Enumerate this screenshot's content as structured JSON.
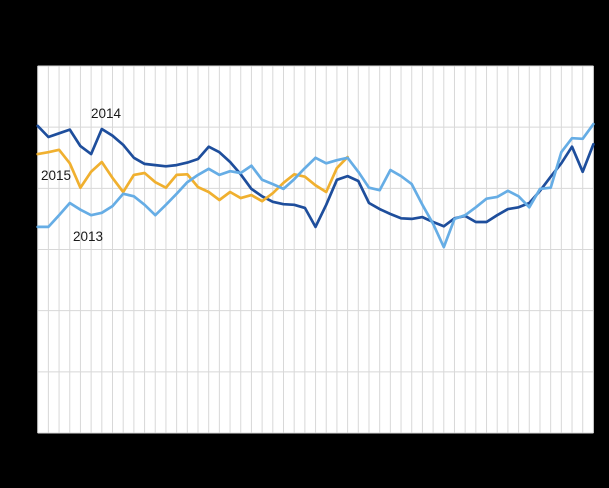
{
  "figure": {
    "title": "",
    "background_color": "#000000",
    "plot_background_color": "#ffffff",
    "gridline_color": "#d8d8d8",
    "label_color": "#1a1a1a"
  },
  "chart_data": {
    "type": "line",
    "x_axis": {
      "tick_labels_visible": false,
      "gridline_count": 53,
      "note": "weekly points; no axis labels rendered in image"
    },
    "y_axis": {
      "tick_labels_visible": false,
      "gridline_count": 7,
      "range_gridline_units": [
        0,
        6
      ],
      "note": "values estimated in gridline units from plot bottom (0) to top (6); no numeric labels rendered in image"
    },
    "legend": "none (labels drawn inside plot next to lines)",
    "series": [
      {
        "name": "2014",
        "color": "#1e4e9c",
        "values": [
          5.02,
          4.84,
          4.9,
          4.96,
          4.69,
          4.56,
          4.97,
          4.86,
          4.71,
          4.5,
          4.4,
          4.38,
          4.36,
          4.38,
          4.42,
          4.48,
          4.68,
          4.59,
          4.43,
          4.23,
          3.99,
          3.87,
          3.78,
          3.74,
          3.73,
          3.68,
          3.37,
          3.73,
          4.14,
          4.2,
          4.12,
          3.76,
          3.66,
          3.58,
          3.51,
          3.5,
          3.53,
          3.45,
          3.38,
          3.51,
          3.55,
          3.45,
          3.45,
          3.56,
          3.66,
          3.69,
          3.76,
          3.96,
          4.19,
          4.41,
          4.68,
          4.27,
          4.72
        ]
      },
      {
        "name": "2015",
        "color": "#f0b02f",
        "values": [
          4.56,
          4.59,
          4.63,
          4.41,
          4.01,
          4.27,
          4.43,
          4.17,
          3.94,
          4.22,
          4.25,
          4.1,
          4.01,
          4.22,
          4.23,
          4.02,
          3.94,
          3.81,
          3.94,
          3.84,
          3.89,
          3.79,
          3.92,
          4.09,
          4.23,
          4.19,
          4.05,
          3.94,
          4.33,
          4.51
        ]
      },
      {
        "name": "2013",
        "color": "#66ade5",
        "values": [
          3.37,
          3.37,
          3.56,
          3.76,
          3.65,
          3.56,
          3.6,
          3.71,
          3.91,
          3.87,
          3.73,
          3.56,
          3.73,
          3.91,
          4.1,
          4.22,
          4.32,
          4.22,
          4.28,
          4.25,
          4.37,
          4.14,
          4.07,
          3.99,
          4.15,
          4.33,
          4.5,
          4.41,
          4.46,
          4.5,
          4.27,
          4.01,
          3.97,
          4.3,
          4.2,
          4.07,
          3.73,
          3.42,
          3.04,
          3.5,
          3.56,
          3.69,
          3.83,
          3.86,
          3.96,
          3.87,
          3.69,
          3.99,
          4.01,
          4.59,
          4.82,
          4.81,
          5.05
        ]
      }
    ]
  },
  "labels": {
    "label_2014": "2014",
    "label_2015": "2015",
    "label_2013": "2013"
  }
}
